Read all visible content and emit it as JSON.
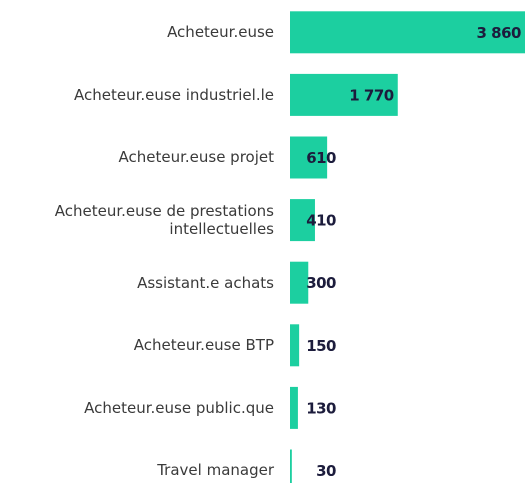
{
  "chart_data": {
    "type": "bar",
    "orientation": "horizontal",
    "categories": [
      "Acheteur.euse",
      "Acheteur.euse industriel.le",
      "Acheteur.euse projet",
      "Acheteur.euse de prestations intellectuelles",
      "Assistant.e achats",
      "Acheteur.euse BTP",
      "Acheteur.euse public.que",
      "Travel manager"
    ],
    "values": [
      3860,
      1770,
      610,
      410,
      300,
      150,
      130,
      30
    ],
    "value_labels": [
      "3 860",
      "1 770",
      "610",
      "410",
      "300",
      "150",
      "130",
      "30"
    ],
    "color": "#1ccfa0"
  }
}
